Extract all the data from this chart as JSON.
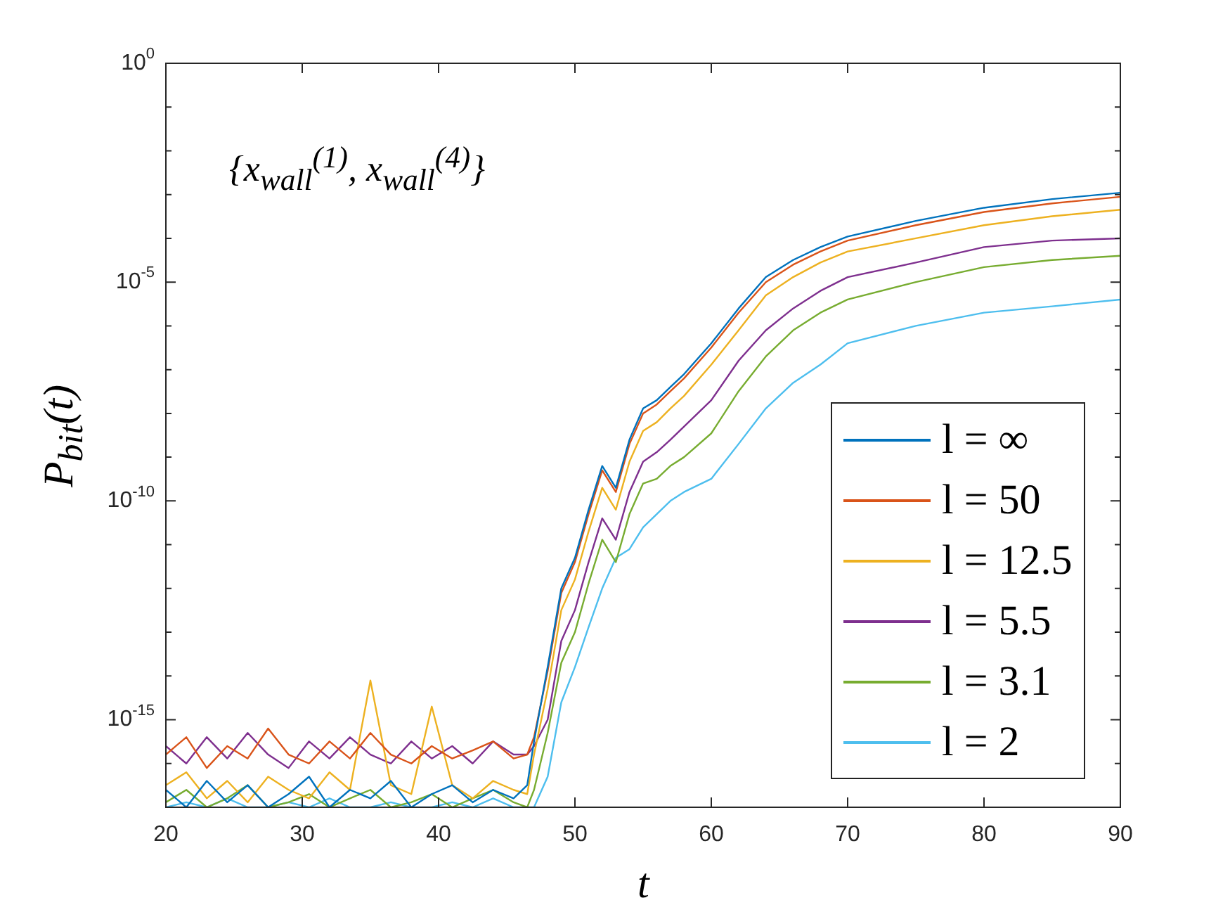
{
  "chart_data": {
    "type": "line",
    "xlabel": "t",
    "ylabel": "P$_{bit}$(t)",
    "annotations": [
      "{x$_{wall}$$^{(1)}$, x$_{wall}$$^{(4)}$}"
    ],
    "x": [
      20,
      21.5,
      23,
      24.5,
      26,
      27.5,
      29,
      30.5,
      32,
      33.5,
      35,
      36.5,
      38,
      39.5,
      41,
      42.5,
      44,
      45.5,
      46.5,
      47,
      48,
      49,
      50,
      51,
      52,
      53,
      54,
      55,
      56,
      57,
      58,
      60,
      62,
      64,
      66,
      68,
      70,
      75,
      80,
      85,
      90
    ],
    "series": [
      {
        "name": "l = ∞",
        "color": "#0072bd",
        "values": [
          2.5e-17,
          1e-17,
          4e-17,
          1.3e-17,
          3.2e-17,
          1e-17,
          2e-17,
          5e-17,
          1e-17,
          2.5e-17,
          1.6e-17,
          4e-17,
          1e-17,
          2e-17,
          3.2e-17,
          1.3e-17,
          2.5e-17,
          1.6e-17,
          3.2e-17,
          3.2e-16,
          1.6e-14,
          1e-12,
          5e-12,
          6.3e-11,
          6.3e-10,
          2e-10,
          2.5e-09,
          1.3e-08,
          2e-08,
          4e-08,
          7.9e-08,
          4e-07,
          2.5e-06,
          1.3e-05,
          3.2e-05,
          6.3e-05,
          0.00011,
          0.00025,
          0.0005,
          0.00079,
          0.0011
        ]
      },
      {
        "name": "l = 50",
        "color": "#d95319",
        "values": [
          1.6e-16,
          4e-16,
          7.9e-17,
          2.5e-16,
          1.3e-16,
          6.3e-16,
          1.6e-16,
          1e-16,
          3.2e-16,
          1.3e-16,
          5e-16,
          1.6e-16,
          1e-16,
          2.5e-16,
          1.3e-16,
          2e-16,
          3.2e-16,
          1.3e-16,
          1.6e-16,
          4e-16,
          1.3e-14,
          7.9e-13,
          4e-12,
          5e-11,
          5e-10,
          1.6e-10,
          2e-09,
          1e-08,
          1.6e-08,
          3.2e-08,
          6.3e-08,
          3.2e-07,
          2e-06,
          1e-05,
          2.5e-05,
          5e-05,
          8.9e-05,
          0.0002,
          0.0004,
          0.00063,
          0.00089
        ]
      },
      {
        "name": "l = 12.5",
        "color": "#edb120",
        "values": [
          3.2e-17,
          6.3e-17,
          1.6e-17,
          4e-17,
          1.3e-17,
          5e-17,
          2.5e-17,
          1.6e-17,
          6.3e-17,
          2.5e-17,
          7.9e-15,
          3.2e-17,
          2e-17,
          2e-15,
          3.2e-17,
          1.6e-17,
          4e-17,
          2.5e-17,
          2e-17,
          1.6e-16,
          5e-15,
          3.2e-13,
          1.6e-12,
          2e-11,
          2e-10,
          6.3e-11,
          7.9e-10,
          4e-09,
          6.3e-09,
          1.3e-08,
          2.5e-08,
          1.3e-07,
          7.9e-07,
          5e-06,
          1.3e-05,
          2.8e-05,
          5e-05,
          0.0001,
          0.0002,
          0.00032,
          0.00045
        ]
      },
      {
        "name": "l = 5.5",
        "color": "#7e2f8e",
        "values": [
          2.5e-16,
          1e-16,
          4e-16,
          1.3e-16,
          5e-16,
          1.6e-16,
          7.9e-17,
          3.2e-16,
          1.3e-16,
          4e-16,
          1.6e-16,
          1e-16,
          3.2e-16,
          1.3e-16,
          2.5e-16,
          1e-16,
          3.2e-16,
          1.6e-16,
          1.6e-16,
          2.5e-16,
          1e-15,
          6.3e-14,
          3.2e-13,
          4e-12,
          4e-11,
          1.3e-11,
          1.6e-10,
          7.9e-10,
          1.3e-09,
          2.5e-09,
          5e-09,
          2e-08,
          1.6e-07,
          7.9e-07,
          2.5e-06,
          6.3e-06,
          1.3e-05,
          2.8e-05,
          6.3e-05,
          8.9e-05,
          0.0001
        ]
      },
      {
        "name": "l = 3.1",
        "color": "#77ac30",
        "values": [
          1.3e-17,
          2.5e-17,
          1e-17,
          1.6e-17,
          3.2e-17,
          1e-17,
          1.3e-17,
          2e-17,
          1e-17,
          1.6e-17,
          2.5e-17,
          1e-17,
          1.3e-17,
          2e-17,
          1e-17,
          1.6e-17,
          2.5e-17,
          1.3e-17,
          1e-17,
          2.5e-17,
          5e-16,
          2e-14,
          1e-13,
          1.3e-12,
          1.3e-11,
          4e-12,
          5e-11,
          2.5e-10,
          3.2e-10,
          6.3e-10,
          1e-09,
          3.5e-09,
          3.2e-08,
          2e-07,
          7.9e-07,
          2e-06,
          4e-06,
          1e-05,
          2.2e-05,
          3.2e-05,
          4e-05
        ]
      },
      {
        "name": "l = 2",
        "color": "#4dbeee",
        "values": [
          1e-17,
          1.3e-17,
          1e-17,
          1.6e-17,
          1e-17,
          1e-17,
          1.3e-17,
          1e-17,
          1.6e-17,
          1e-17,
          1e-17,
          1.3e-17,
          1e-17,
          1e-17,
          1.3e-17,
          1e-17,
          1.6e-17,
          1e-17,
          1e-17,
          1e-17,
          5e-17,
          2.5e-15,
          1.6e-14,
          1.3e-13,
          1e-12,
          5e-12,
          7.9e-12,
          2.5e-11,
          5e-11,
          1e-10,
          1.6e-10,
          3.2e-10,
          2e-09,
          1.3e-08,
          5e-08,
          1.3e-07,
          4e-07,
          1e-06,
          2e-06,
          2.8e-06,
          4e-06
        ]
      }
    ],
    "xlim": [
      20,
      90
    ],
    "xticks": [
      20,
      30,
      40,
      50,
      60,
      70,
      80,
      90
    ],
    "ylim": [
      1e-17,
      1
    ],
    "log": "y",
    "yticks": [
      {
        "value": 1e-17,
        "label": null
      },
      {
        "value": 1e-16,
        "label": null
      },
      {
        "value": 1e-15,
        "label": "10$^{-15}$"
      },
      {
        "value": 1e-14,
        "label": null
      },
      {
        "value": 1e-13,
        "label": null
      },
      {
        "value": 1e-12,
        "label": null
      },
      {
        "value": 1e-11,
        "label": null
      },
      {
        "value": 1e-10,
        "label": "10$^{-10}$"
      },
      {
        "value": 1e-09,
        "label": null
      },
      {
        "value": 1e-08,
        "label": null
      },
      {
        "value": 1e-07,
        "label": null
      },
      {
        "value": 1e-06,
        "label": null
      },
      {
        "value": 1e-05,
        "label": "10$^{-5}$"
      },
      {
        "value": 0.0001,
        "label": null
      },
      {
        "value": 0.001,
        "label": null
      },
      {
        "value": 0.01,
        "label": null
      },
      {
        "value": 0.1,
        "label": null
      },
      {
        "value": 1,
        "label": "10$^{0}$"
      }
    ],
    "grid": false,
    "legend": "bottom right",
    "marker": "none",
    "line_style": "solid"
  }
}
